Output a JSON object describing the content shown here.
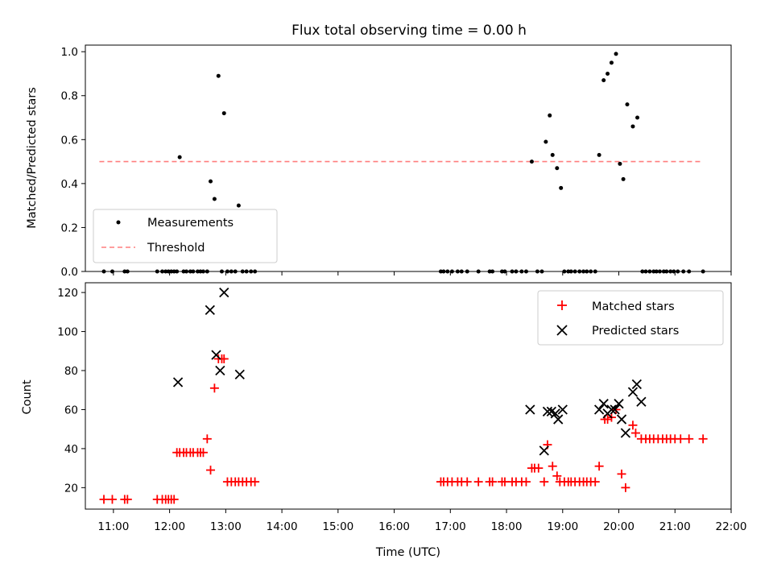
{
  "figure": {
    "title": "Flux total observing time = 0.00 h"
  },
  "chart_data": [
    {
      "type": "scatter",
      "title": "Flux total observing time = 0.00 h",
      "xlabel": "",
      "ylabel": "Matched/Predicted stars",
      "x_unit": "hours UTC",
      "xlim": [
        10.5,
        22.0
      ],
      "ylim": [
        0.0,
        1.03
      ],
      "yticks": [
        0.0,
        0.2,
        0.4,
        0.6,
        0.8,
        1.0
      ],
      "ytick_labels": [
        "0.0",
        "0.2",
        "0.4",
        "0.6",
        "0.8",
        "1.0"
      ],
      "legend": {
        "position": "lower left",
        "entries": [
          "Measurements",
          "Threshold"
        ]
      },
      "threshold": {
        "name": "Threshold",
        "x": [
          10.75,
          21.5
        ],
        "y": 0.5,
        "color": "#ff7f7f"
      },
      "series": [
        {
          "name": "Measurements",
          "color": "#000000",
          "x": [
            10.83,
            10.98,
            11.2,
            11.25,
            11.78,
            11.87,
            11.93,
            11.98,
            12.03,
            12.08,
            12.13,
            12.18,
            12.25,
            12.3,
            12.37,
            12.42,
            12.5,
            12.55,
            12.6,
            12.67,
            12.73,
            12.8,
            12.87,
            12.93,
            12.97,
            13.03,
            13.1,
            13.17,
            13.23,
            13.3,
            13.37,
            13.45,
            13.52,
            16.83,
            16.88,
            16.95,
            17.03,
            17.13,
            17.2,
            17.3,
            17.5,
            17.7,
            17.75,
            17.92,
            17.97,
            18.1,
            18.17,
            18.27,
            18.35,
            18.45,
            18.55,
            18.63,
            18.7,
            18.77,
            18.82,
            18.9,
            18.97,
            19.03,
            19.1,
            19.15,
            19.22,
            19.3,
            19.37,
            19.43,
            19.5,
            19.58,
            19.65,
            19.73,
            19.8,
            19.87,
            19.95,
            20.02,
            20.08,
            20.15,
            20.25,
            20.33,
            20.42,
            20.48,
            20.55,
            20.62,
            20.67,
            20.73,
            20.8,
            20.85,
            20.92,
            20.98,
            21.05,
            21.15,
            21.25,
            21.5
          ],
          "y": [
            0.0,
            0.0,
            0.0,
            0.0,
            0.0,
            0.0,
            0.0,
            0.0,
            0.0,
            0.0,
            0.0,
            0.52,
            0.0,
            0.0,
            0.0,
            0.0,
            0.0,
            0.0,
            0.0,
            0.0,
            0.41,
            0.33,
            0.89,
            0.0,
            0.72,
            0.0,
            0.0,
            0.0,
            0.3,
            0.0,
            0.0,
            0.0,
            0.0,
            0.0,
            0.0,
            0.0,
            0.0,
            0.0,
            0.0,
            0.0,
            0.0,
            0.0,
            0.0,
            0.0,
            0.0,
            0.0,
            0.0,
            0.0,
            0.0,
            0.5,
            0.0,
            0.0,
            0.59,
            0.71,
            0.53,
            0.47,
            0.38,
            0.0,
            0.0,
            0.0,
            0.0,
            0.0,
            0.0,
            0.0,
            0.0,
            0.0,
            0.53,
            0.87,
            0.9,
            0.95,
            0.99,
            0.49,
            0.42,
            0.76,
            0.66,
            0.7,
            0.0,
            0.0,
            0.0,
            0.0,
            0.0,
            0.0,
            0.0,
            0.0,
            0.0,
            0.0,
            0.0,
            0.0,
            0.0,
            0.0
          ]
        }
      ]
    },
    {
      "type": "scatter",
      "xlabel": "Time (UTC)",
      "ylabel": "Count",
      "x_unit": "hours UTC",
      "xlim": [
        10.5,
        22.0
      ],
      "ylim": [
        9,
        125
      ],
      "yticks": [
        20,
        40,
        60,
        80,
        100,
        120
      ],
      "ytick_labels": [
        "20",
        "40",
        "60",
        "80",
        "100",
        "120"
      ],
      "xticks": [
        11,
        12,
        13,
        14,
        15,
        16,
        17,
        18,
        19,
        20,
        21,
        22
      ],
      "xtick_labels": [
        "11:00",
        "12:00",
        "13:00",
        "14:00",
        "15:00",
        "16:00",
        "17:00",
        "18:00",
        "19:00",
        "20:00",
        "21:00",
        "22:00"
      ],
      "legend": {
        "position": "upper right",
        "entries": [
          "Matched stars",
          "Predicted stars"
        ]
      },
      "series": [
        {
          "name": "Matched stars",
          "marker": "plus",
          "color": "#ff0000",
          "x": [
            10.83,
            10.98,
            11.2,
            11.25,
            11.78,
            11.87,
            11.93,
            11.98,
            12.03,
            12.08,
            12.13,
            12.18,
            12.25,
            12.3,
            12.37,
            12.42,
            12.5,
            12.55,
            12.6,
            12.67,
            12.73,
            12.8,
            12.87,
            12.93,
            12.97,
            13.03,
            13.1,
            13.17,
            13.23,
            13.3,
            13.37,
            13.45,
            13.52,
            16.83,
            16.88,
            16.95,
            17.03,
            17.13,
            17.2,
            17.3,
            17.5,
            17.7,
            17.75,
            17.92,
            17.97,
            18.1,
            18.17,
            18.27,
            18.35,
            18.45,
            18.5,
            18.57,
            18.67,
            18.73,
            18.82,
            18.9,
            18.95,
            19.03,
            19.1,
            19.15,
            19.22,
            19.3,
            19.37,
            19.43,
            19.5,
            19.58,
            19.65,
            19.75,
            19.8,
            19.87,
            19.95,
            20.05,
            20.12,
            20.25,
            20.3,
            20.4,
            20.48,
            20.55,
            20.62,
            20.7,
            20.78,
            20.85,
            20.92,
            21.0,
            21.1,
            21.25,
            21.5
          ],
          "y": [
            14,
            14,
            14,
            14,
            14,
            14,
            14,
            14,
            14,
            14,
            38,
            38,
            38,
            38,
            38,
            38,
            38,
            38,
            38,
            45,
            29,
            71,
            86,
            86,
            86,
            23,
            23,
            23,
            23,
            23,
            23,
            23,
            23,
            23,
            23,
            23,
            23,
            23,
            23,
            23,
            23,
            23,
            23,
            23,
            23,
            23,
            23,
            23,
            23,
            30,
            30,
            30,
            23,
            42,
            31,
            26,
            23,
            23,
            23,
            23,
            23,
            23,
            23,
            23,
            23,
            23,
            31,
            55,
            55,
            56,
            60,
            27,
            20,
            52,
            48,
            45,
            45,
            45,
            45,
            45,
            45,
            45,
            45,
            45,
            45,
            45,
            45
          ]
        },
        {
          "name": "Predicted stars",
          "marker": "x",
          "color": "#000000",
          "x": [
            12.15,
            12.72,
            12.83,
            12.9,
            12.97,
            13.25,
            18.42,
            18.67,
            18.73,
            18.8,
            18.87,
            18.92,
            19.0,
            19.65,
            19.73,
            19.8,
            19.87,
            19.93,
            20.0,
            20.05,
            20.12,
            20.25,
            20.32,
            20.4
          ],
          "y": [
            74,
            111,
            88,
            80,
            120,
            78,
            60,
            39,
            59,
            59,
            58,
            55,
            60,
            60,
            63,
            58,
            60,
            60,
            63,
            55,
            48,
            69,
            73,
            64
          ]
        }
      ]
    }
  ]
}
